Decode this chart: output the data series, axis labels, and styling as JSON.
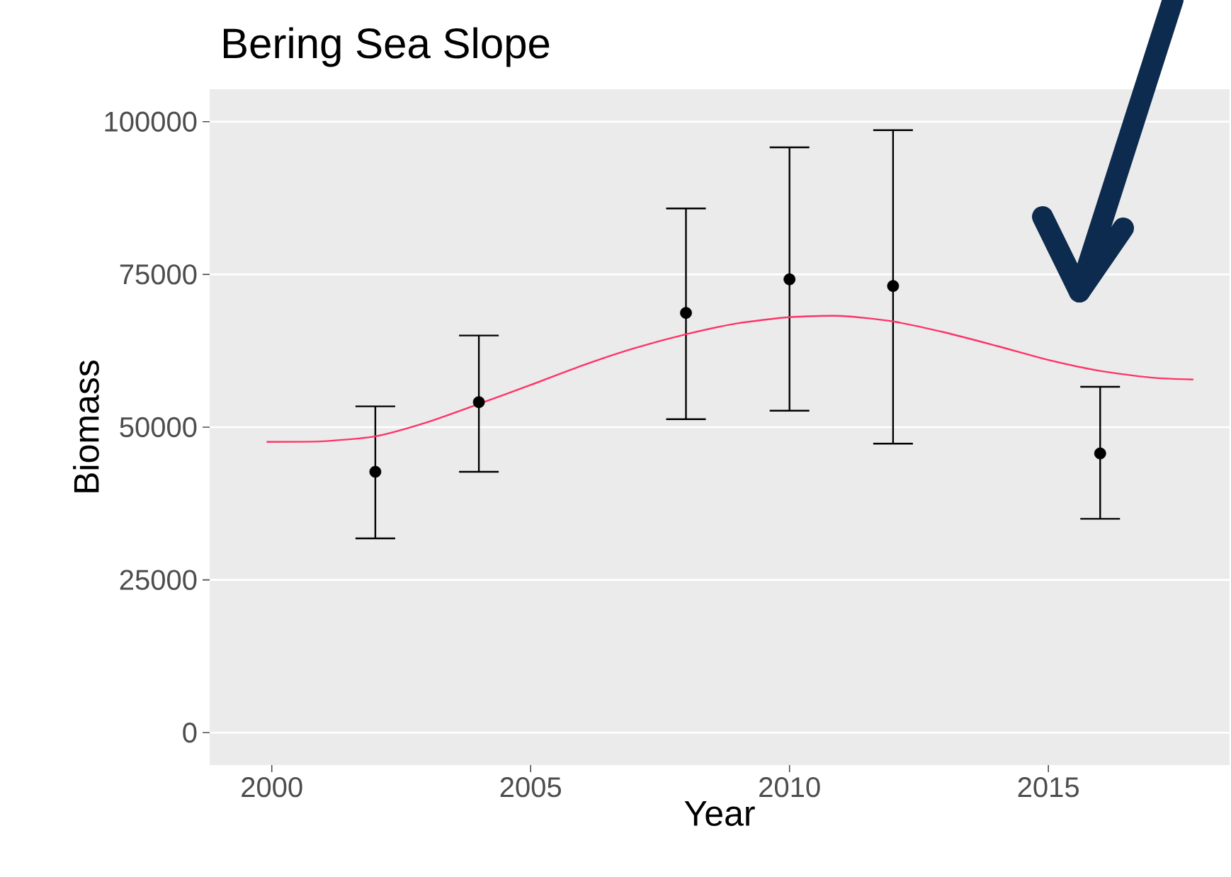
{
  "chart_data": {
    "type": "scatter",
    "title": "Bering Sea Slope",
    "xlabel": "Year",
    "ylabel": "Biomass",
    "xlim": [
      1998.8,
      2018.5
    ],
    "ylim": [
      -5300,
      105300
    ],
    "xticks": [
      2000,
      2005,
      2010,
      2015
    ],
    "yticks": [
      0,
      25000,
      50000,
      75000,
      100000
    ],
    "grid": "y",
    "series": [
      {
        "marker": "circle",
        "color": "#000000",
        "x": [
          2002,
          2004,
          2008,
          2010,
          2012,
          2016
        ],
        "values": [
          42700,
          54100,
          68700,
          74200,
          73100,
          45700
        ],
        "errors": [
          [
            31800,
            53400
          ],
          [
            42700,
            65000
          ],
          [
            51300,
            85800
          ],
          [
            52700,
            95800
          ],
          [
            47300,
            98600
          ],
          [
            35000,
            56600
          ]
        ]
      },
      {
        "type": "line",
        "color": "#ff3366",
        "x": [
          1999.9,
          2001,
          2002,
          2003,
          2004,
          2005,
          2006,
          2007,
          2008,
          2009,
          2010,
          2011,
          2012,
          2013,
          2014,
          2015,
          2016,
          2017,
          2017.8
        ],
        "values": [
          47600,
          47700,
          48500,
          50800,
          53800,
          56900,
          60100,
          62900,
          65200,
          67000,
          68000,
          68200,
          67300,
          65500,
          63300,
          61000,
          59200,
          58100,
          57800
        ]
      }
    ]
  }
}
